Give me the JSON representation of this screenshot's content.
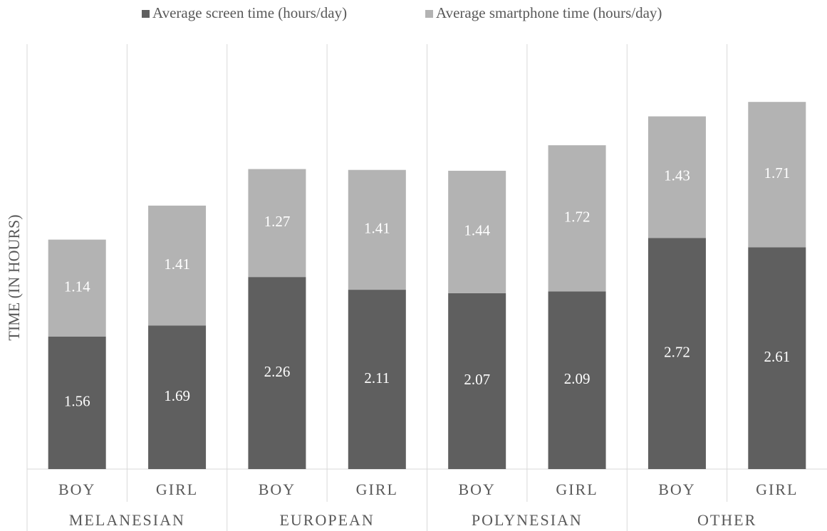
{
  "chart_data": {
    "type": "stacked_bar",
    "y_label": "TIME (IN HOURS)",
    "categories": [
      "BOY",
      "GIRL",
      "BOY",
      "GIRL",
      "BOY",
      "GIRL",
      "BOY",
      "GIRL"
    ],
    "groups": [
      "MELANESIAN",
      "EUROPEAN",
      "POLYNESIAN",
      "OTHER"
    ],
    "series": [
      {
        "name": "Average screen time (hours/day)",
        "color": "#5f5f5f",
        "values": [
          1.56,
          1.69,
          2.26,
          2.11,
          2.07,
          2.09,
          2.72,
          2.61
        ]
      },
      {
        "name": "Average smartphone time (hours/day)",
        "color": "#b3b3b3",
        "values": [
          1.14,
          1.41,
          1.27,
          1.41,
          1.44,
          1.72,
          1.43,
          1.71
        ]
      }
    ],
    "ylim": [
      0,
      5
    ],
    "legend": "top"
  }
}
